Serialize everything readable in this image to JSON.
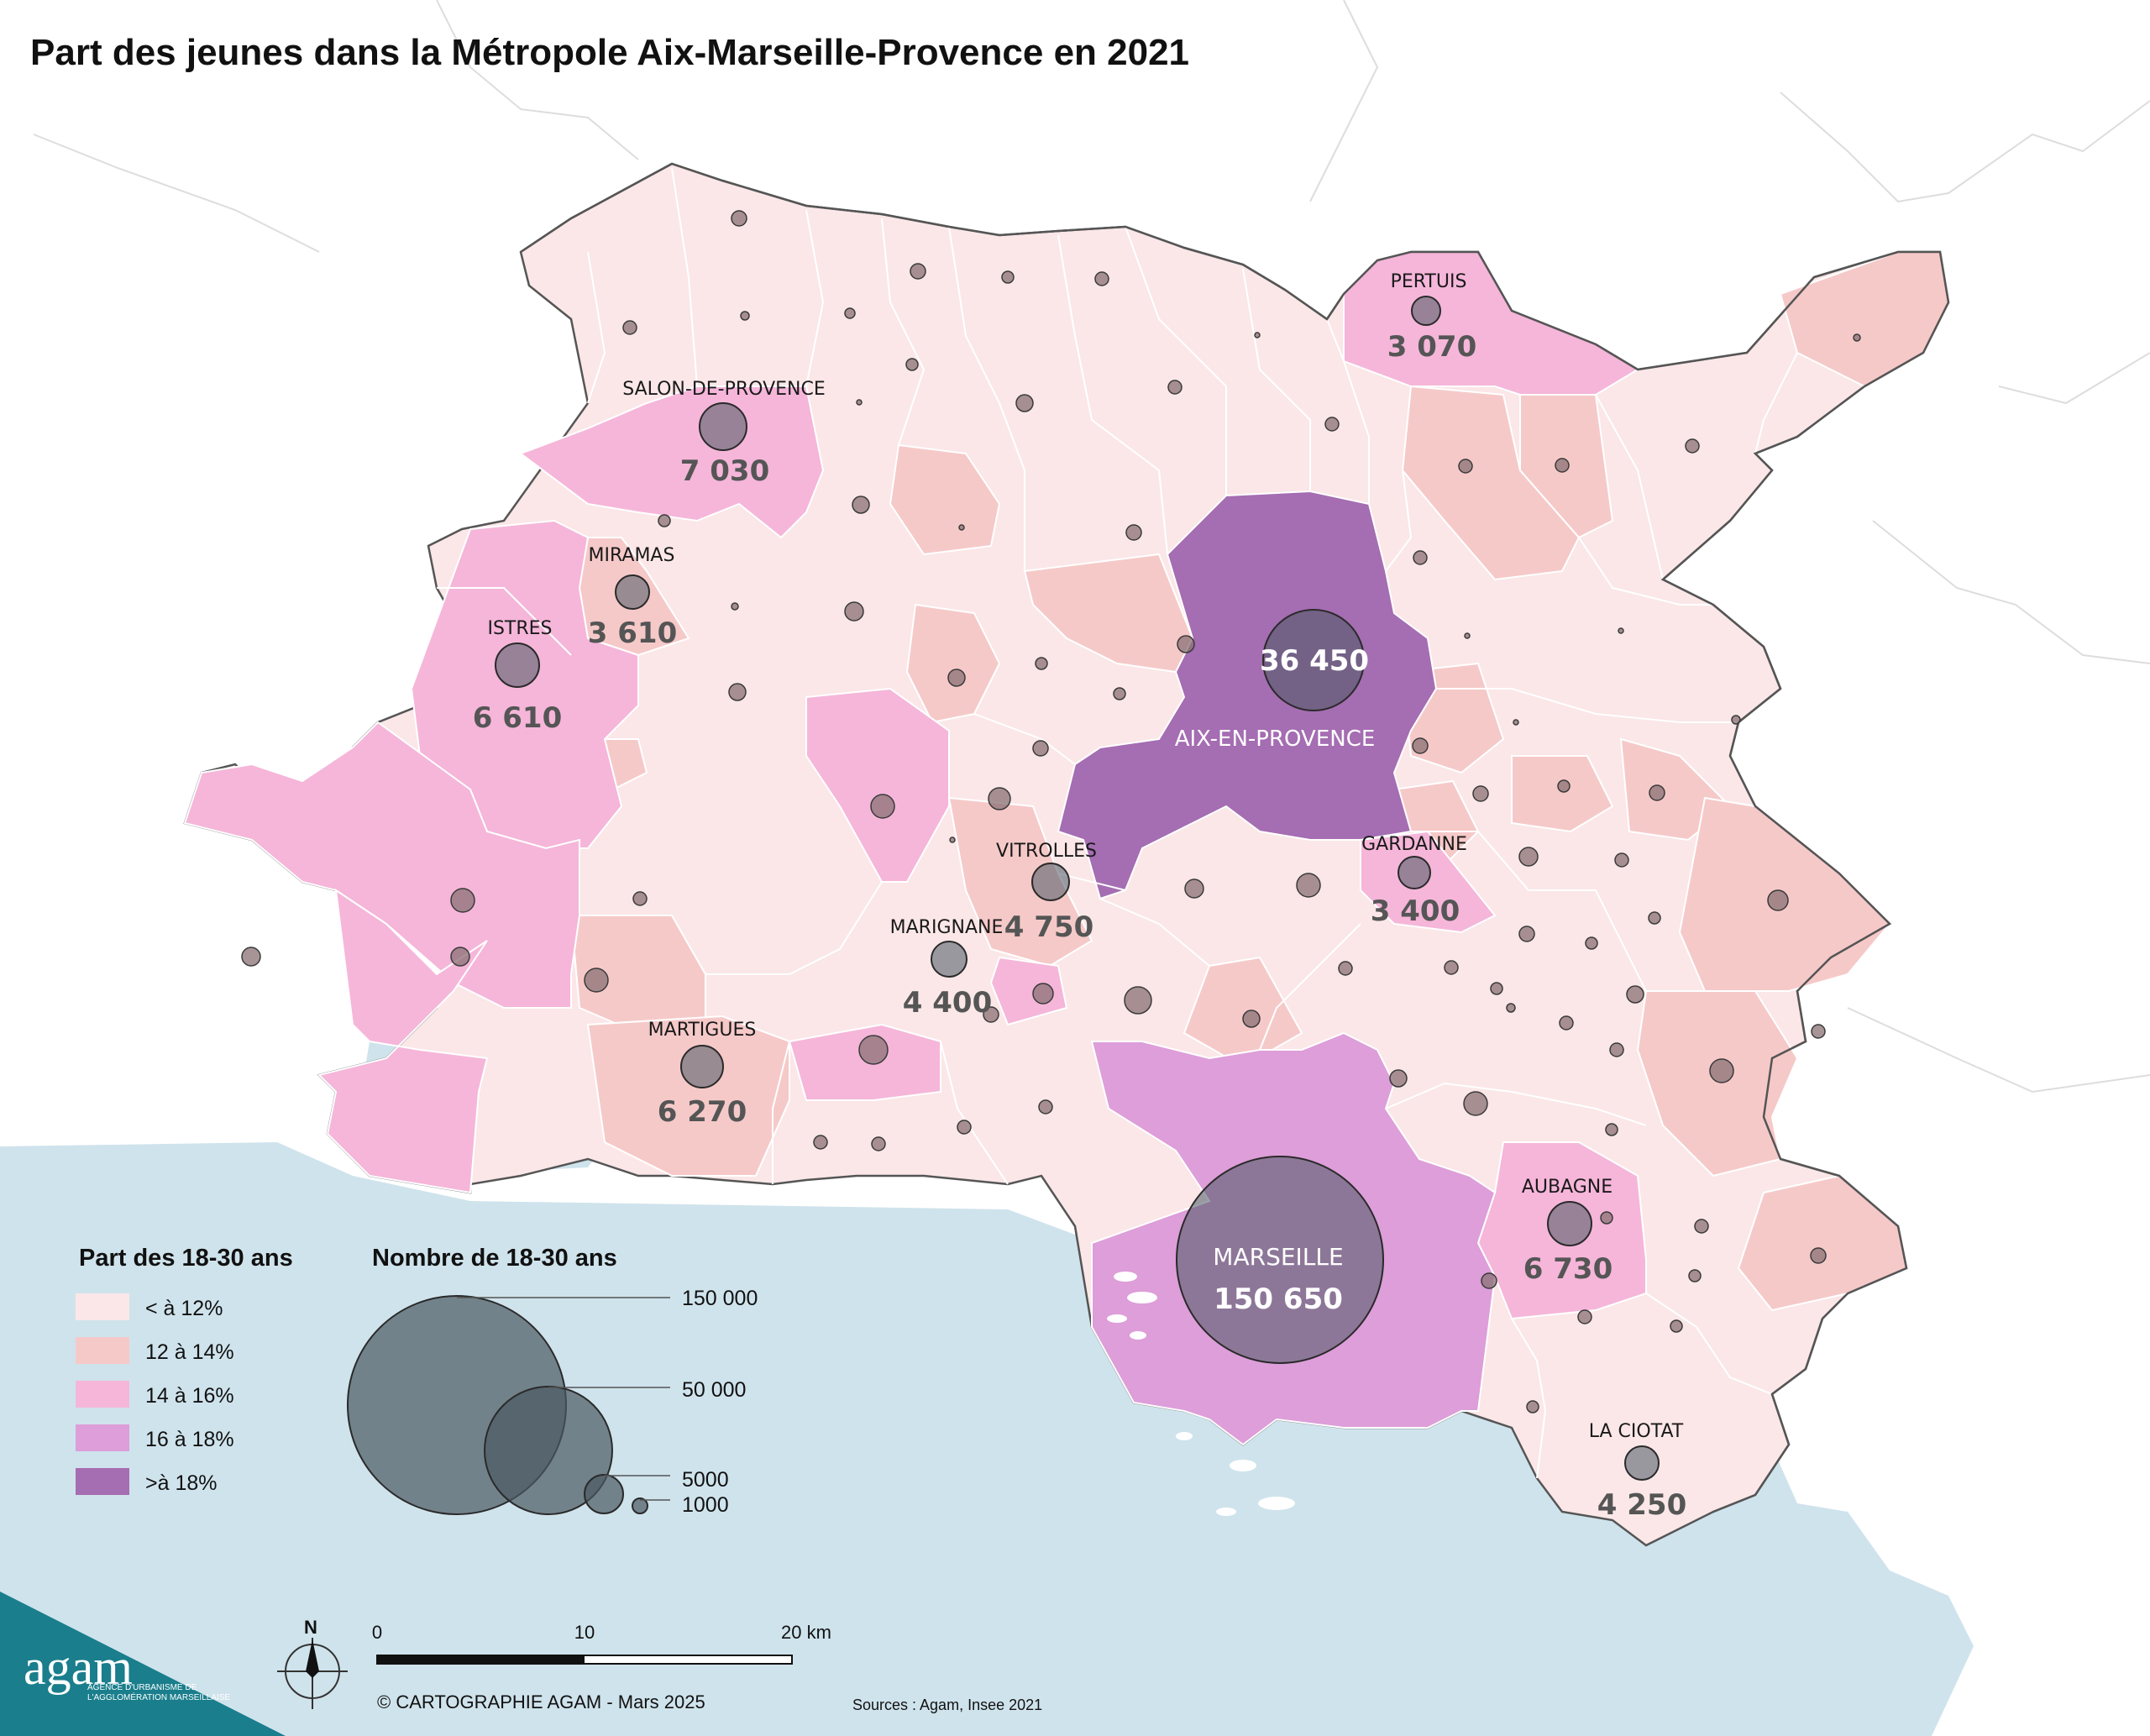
{
  "title": "Part des jeunes dans la Métropole Aix-Marseille-Provence en 2021",
  "colors": {
    "sea": "#cfe3ec",
    "land_outside": "#ffffff",
    "lt12": "#fbe7e8",
    "c12_14": "#f6c9c9",
    "c14_16": "#f5b6d9",
    "c16_18": "#dd9ed9",
    "gt18": "#a56db2",
    "bubble": "#4a5863",
    "logo": "#1a7e8c"
  },
  "cities": [
    {
      "name": "PERTUIS",
      "value": "3 070"
    },
    {
      "name": "SALON-DE-PROVENCE",
      "value": "7 030"
    },
    {
      "name": "MIRAMAS",
      "value": "3 610"
    },
    {
      "name": "ISTRES",
      "value": "6 610"
    },
    {
      "name": "AIX-EN-PROVENCE",
      "value": "36 450"
    },
    {
      "name": "GARDANNE",
      "value": "3 400"
    },
    {
      "name": "VITROLLES",
      "value": "4 750"
    },
    {
      "name": "MARIGNANE",
      "value": "4 400"
    },
    {
      "name": "MARTIGUES",
      "value": "6 270"
    },
    {
      "name": "AUBAGNE",
      "value": "6 730"
    },
    {
      "name": "MARSEILLE",
      "value": "150 650"
    },
    {
      "name": "LA CIOTAT",
      "value": "4 250"
    }
  ],
  "legend_share": {
    "title": "Part des 18-30 ans",
    "items": [
      {
        "label": "< à 12%",
        "color": "#fbe7e8"
      },
      {
        "label": "12 à 14%",
        "color": "#f6c9c9"
      },
      {
        "label": "14 à 16%",
        "color": "#f5b6d9"
      },
      {
        "label": "16 à 18%",
        "color": "#dd9ed9"
      },
      {
        "label": ">à 18%",
        "color": "#a56db2"
      }
    ]
  },
  "legend_count": {
    "title": "Nombre de 18-30 ans",
    "items": [
      {
        "label": "150 000",
        "value": 150000
      },
      {
        "label": "50 000",
        "value": 50000
      },
      {
        "label": "5000",
        "value": 5000
      },
      {
        "label": "1000",
        "value": 1000
      }
    ]
  },
  "scale": {
    "ticks": [
      "0",
      "10",
      "20 km"
    ]
  },
  "north": "N",
  "credit": "© CARTOGRAPHIE AGAM - Mars 2025",
  "sources": "Sources : Agam, Insee 2021",
  "logo": {
    "name": "agam",
    "line1": "AGENCE D'URBANISME DE",
    "line2": "L'AGGLOMÉRATION MARSEILLAISE"
  }
}
